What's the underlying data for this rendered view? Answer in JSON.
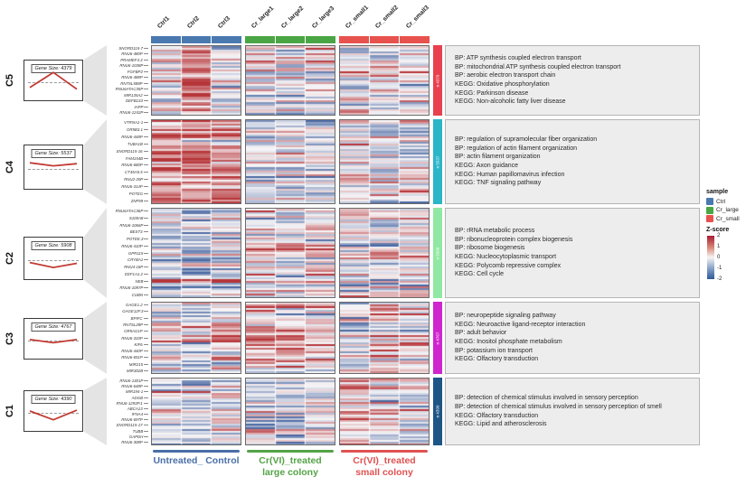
{
  "chart_data": {
    "type": "heatmap",
    "title": "",
    "zscore_range": [
      -2,
      2
    ],
    "columns": [
      "Ctrl1",
      "Ctrl2",
      "Ctrl3",
      "Cr_large1",
      "Cr_large2",
      "Cr_large3",
      "Cr_small1",
      "Cr_small2",
      "Cr_small3"
    ],
    "column_groups": [
      {
        "name": "Ctrl",
        "color": "#4a79b0"
      },
      {
        "name": "Cr_large",
        "color": "#4aa644"
      },
      {
        "name": "Cr_small",
        "color": "#e8524e"
      }
    ],
    "clusters": [
      {
        "name": "C5",
        "gene_size": 4379,
        "gene_size_label": "Gene Size: 4379",
        "sidebar_label": "n 4379",
        "color": "#e8404f",
        "trend": [
          0.68,
          0.3,
          0.72
        ],
        "pattern": [
          0.05,
          0.65,
          -0.05,
          0.05,
          0.0,
          0.05,
          0.0,
          0.0,
          0.05
        ],
        "genes": [
          "SNORD115-7",
          "RNU6-480P",
          "PRAMEF4.3",
          "RNU6-1038P",
          "FGFBP2",
          "RNU6-488P",
          "RN7SL588P",
          "RNU6ATAC35P",
          "MIR135A2",
          "DEFB133",
          "IAPP",
          "RNU6-1242P"
        ],
        "terms": [
          "BP: ATP synthesis coupled electron transport",
          "BP: mitochondrial ATP synthesis coupled electron transport",
          "BP: aerobic electron transport chain",
          "KEGG: Oxidative phosphorylation",
          "KEGG: Parkinson disease",
          "KEGG: Non-alcoholic fatty liver disease"
        ]
      },
      {
        "name": "C4",
        "gene_size": 5537,
        "gene_size_label": "Gene Size: 5537",
        "sidebar_label": "n 5537",
        "color": "#2ab5c8",
        "trend": [
          0.4,
          0.47,
          0.42
        ],
        "pattern": [
          0.45,
          0.4,
          0.45,
          -0.15,
          -0.1,
          -0.1,
          -0.1,
          -0.15,
          -0.05
        ],
        "genes": [
          "VTRNA1-1",
          "OR5B3.1",
          "RNU6-448P",
          "TUBA1B",
          "SNORD115-16",
          "FAM154B",
          "RNU6-680P",
          "CT45A5.5",
          "RNU2-20P",
          "RNU6-314P",
          "POTEG",
          "ZNF99"
        ],
        "terms": [
          "BP: regulation of supramolecular fiber organization",
          "BP: regulation of actin filament organization",
          "BP: actin filament organization",
          "KEGG: Axon guidance",
          "KEGG: Human papillomavirus infection",
          "KEGG: TNF signaling pathway"
        ]
      },
      {
        "name": "C2",
        "gene_size": 5908,
        "gene_size_label": "Gene Size: 5908",
        "sidebar_label": "n 5908",
        "color": "#90e8a2",
        "trend": [
          0.6,
          0.72,
          0.62
        ],
        "pattern": [
          -0.2,
          -0.25,
          -0.15,
          0.05,
          0.0,
          0.05,
          0.0,
          -0.05,
          0.05
        ],
        "genes": [
          "RNU6ATAC36P",
          "S100A8",
          "RNU6-1066P",
          "BEST3",
          "POTEE.3",
          "RNU6-410P",
          "GPR115",
          "CRYBA1",
          "RNU4-16P",
          "EEF1A1.2",
          "NEB",
          "RNU6-1097P",
          "CUBN"
        ],
        "terms": [
          "BP: rRNA metabolic process",
          "BP: ribonucleoprotein complex biogenesis",
          "BP: ribosome biogenesis",
          "KEGG: Nucleocytoplasmic transport",
          "KEGG: Polycomb repressive complex",
          "KEGG: Cell cycle"
        ]
      },
      {
        "name": "C3",
        "gene_size": 4767,
        "gene_size_label": "Gene Size: 4767",
        "sidebar_label": "n 4767",
        "color": "#cf25cf",
        "trend": [
          0.52,
          0.6,
          0.52
        ],
        "pattern": [
          0.0,
          -0.2,
          0.1,
          0.3,
          0.2,
          0.1,
          -0.25,
          0.15,
          0.05
        ],
        "genes": [
          "GAGE1.2",
          "GAGE12F.3",
          "BPIFC",
          "RN7SL28P",
          "OR5AG1P",
          "RNU6-333P",
          "KIF6",
          "RNU6-440P",
          "RNU6-651P",
          "MIR215",
          "MIR302B"
        ],
        "terms": [
          "BP: neuropeptide signaling pathway",
          "KEGG: Neuroactive ligand-receptor interaction",
          "BP: adult behavior",
          "KEGG: Inositol phosphate metabolism",
          "BP: potassium ion transport",
          "KEGG: Olfactory transduction"
        ]
      },
      {
        "name": "C1",
        "gene_size": 4390,
        "gene_size_label": "Gene Size: 4390",
        "sidebar_label": "n 4390",
        "color": "#1d5585",
        "trend": [
          0.5,
          0.72,
          0.48
        ],
        "pattern": [
          0.0,
          -0.15,
          0.05,
          -0.05,
          -0.1,
          0.1,
          0.45,
          0.1,
          -0.05
        ],
        "genes": [
          "RNU6-1301P",
          "RNU6-648P",
          "MIR194-1",
          "ADGB",
          "RNU6-1293P.1",
          "ABCA13",
          "IFNA4",
          "RNU6-697P",
          "SNORD115-17",
          "TUBB",
          "GAPDH",
          "RNU6-308P"
        ],
        "terms": [
          "BP: detection of chemical stimulus involved in sensory perception",
          "BP: detection of chemical stimulus involved in sensory perception of smell",
          "KEGG: Olfactory transduction",
          "KEGG: Lipid and atherosclerosis"
        ]
      }
    ]
  },
  "legend": {
    "sample_title": "sample",
    "items": [
      {
        "label": "Ctrl",
        "color": "#4a79b0"
      },
      {
        "label": "Cr_large",
        "color": "#4aa644"
      },
      {
        "label": "Cr_small",
        "color": "#e8524e"
      }
    ],
    "zscore_title": "Z-score",
    "zscore_ticks": [
      "2",
      "1",
      "0",
      "-1",
      "-2"
    ],
    "zscore_top_color": "#a81c33",
    "zscore_bottom_color": "#2c5898"
  },
  "bottom_groups": [
    {
      "lines": [
        "Untreated_ Control"
      ],
      "color": "#4a6fa8"
    },
    {
      "lines": [
        "Cr(VI)_treated",
        "large colony"
      ],
      "color": "#53a346"
    },
    {
      "lines": [
        "Cr(VI)_treated",
        "small colony"
      ],
      "color": "#e05252"
    }
  ]
}
